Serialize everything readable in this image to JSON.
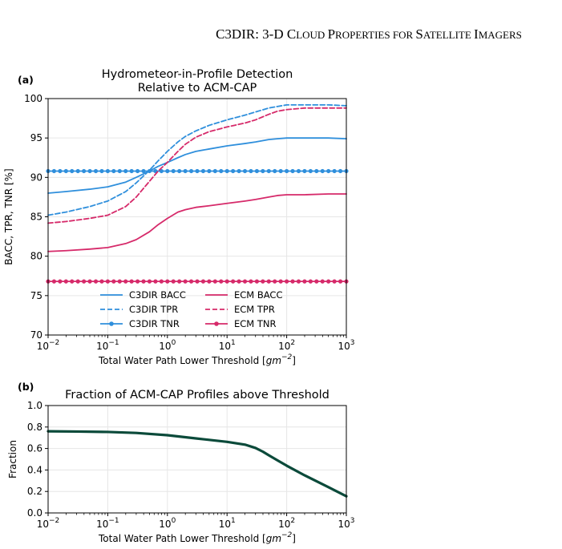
{
  "header": {
    "prefix": "C3DIR: 3-D ",
    "words": [
      {
        "cap": "C",
        "rest": "LOUD"
      },
      {
        "cap": "P",
        "rest": "ROPERTIES FOR"
      },
      {
        "cap": "S",
        "rest": "ATELLITE"
      },
      {
        "cap": "I",
        "rest": "MAGERS"
      }
    ]
  },
  "colors": {
    "c3dir": "#2f8fdc",
    "ecm": "#d62a6a",
    "fraction": "#0b4a3a",
    "grid": "#e6e6e6"
  },
  "chart_data": [
    {
      "type": "line",
      "panel_label": "(a)",
      "title": [
        "Hydrometeor-in-Profile Detection",
        "Relative to ACM-CAP"
      ],
      "xlabel": "Total Water Path Lower Threshold [gm⁻²]",
      "ylabel": "BACC, TPR, TNR [%]",
      "xscale": "log",
      "xlim": [
        0.01,
        1000
      ],
      "ylim": [
        70,
        100
      ],
      "xticks": [
        {
          "value": 0.01,
          "base": "10",
          "exp": "−2"
        },
        {
          "value": 0.1,
          "base": "10",
          "exp": "−1"
        },
        {
          "value": 1,
          "base": "10",
          "exp": "0"
        },
        {
          "value": 10,
          "base": "10",
          "exp": "1"
        },
        {
          "value": 100,
          "base": "10",
          "exp": "2"
        },
        {
          "value": 1000,
          "base": "10",
          "exp": "3"
        }
      ],
      "yticks": [
        70,
        75,
        80,
        85,
        90,
        95,
        100
      ],
      "grid": true,
      "legend": "lower-center, 2 columns",
      "x": [
        0.01,
        0.02,
        0.05,
        0.1,
        0.2,
        0.3,
        0.5,
        0.7,
        1,
        1.5,
        2,
        3,
        5,
        10,
        20,
        30,
        50,
        70,
        100,
        200,
        500,
        1000
      ],
      "series": [
        {
          "name": "C3DIR BACC",
          "color": "#2f8fdc",
          "style": "solid",
          "marker": false,
          "values": [
            88.0,
            88.2,
            88.5,
            88.8,
            89.4,
            90.0,
            90.8,
            91.4,
            91.9,
            92.5,
            92.9,
            93.3,
            93.6,
            94.0,
            94.3,
            94.5,
            94.8,
            94.9,
            95.0,
            95.0,
            95.0,
            94.9
          ]
        },
        {
          "name": "C3DIR TPR",
          "color": "#2f8fdc",
          "style": "dashed",
          "marker": false,
          "values": [
            85.2,
            85.6,
            86.3,
            87.0,
            88.2,
            89.3,
            90.9,
            92.1,
            93.3,
            94.5,
            95.2,
            95.9,
            96.6,
            97.3,
            97.9,
            98.3,
            98.8,
            99.0,
            99.2,
            99.2,
            99.2,
            99.1
          ]
        },
        {
          "name": "C3DIR TNR",
          "color": "#2f8fdc",
          "style": "solid",
          "marker": true,
          "values": [
            90.8,
            90.8,
            90.8,
            90.8,
            90.8,
            90.8,
            90.8,
            90.8,
            90.8,
            90.8,
            90.8,
            90.8,
            90.8,
            90.8,
            90.8,
            90.8,
            90.8,
            90.8,
            90.8,
            90.8,
            90.8,
            90.8
          ]
        },
        {
          "name": "ECM BACC",
          "color": "#d62a6a",
          "style": "solid",
          "marker": false,
          "values": [
            80.6,
            80.7,
            80.9,
            81.1,
            81.6,
            82.1,
            83.1,
            84.0,
            84.8,
            85.6,
            85.9,
            86.2,
            86.4,
            86.7,
            87.0,
            87.2,
            87.5,
            87.7,
            87.8,
            87.8,
            87.9,
            87.9
          ]
        },
        {
          "name": "ECM TPR",
          "color": "#d62a6a",
          "style": "dashed",
          "marker": false,
          "values": [
            84.2,
            84.4,
            84.8,
            85.2,
            86.3,
            87.5,
            89.5,
            90.8,
            91.9,
            93.3,
            94.2,
            95.1,
            95.8,
            96.4,
            96.9,
            97.3,
            98.0,
            98.4,
            98.6,
            98.8,
            98.8,
            98.8
          ]
        },
        {
          "name": "ECM TNR",
          "color": "#d62a6a",
          "style": "solid",
          "marker": true,
          "values": [
            76.8,
            76.8,
            76.8,
            76.8,
            76.8,
            76.8,
            76.8,
            76.8,
            76.8,
            76.8,
            76.8,
            76.8,
            76.8,
            76.8,
            76.8,
            76.8,
            76.8,
            76.8,
            76.8,
            76.8,
            76.8,
            76.8
          ]
        }
      ]
    },
    {
      "type": "line",
      "panel_label": "(b)",
      "title": [
        "Fraction of ACM-CAP Profiles above Threshold"
      ],
      "xlabel": "Total Water Path Lower Threshold [gm⁻²]",
      "ylabel": "Fraction",
      "xscale": "log",
      "xlim": [
        0.01,
        1000
      ],
      "ylim": [
        0.0,
        1.0
      ],
      "xticks": [
        {
          "value": 0.01,
          "base": "10",
          "exp": "−2"
        },
        {
          "value": 0.1,
          "base": "10",
          "exp": "−1"
        },
        {
          "value": 1,
          "base": "10",
          "exp": "0"
        },
        {
          "value": 10,
          "base": "10",
          "exp": "1"
        },
        {
          "value": 100,
          "base": "10",
          "exp": "2"
        },
        {
          "value": 1000,
          "base": "10",
          "exp": "3"
        }
      ],
      "yticks": [
        "0.0",
        "0.2",
        "0.4",
        "0.6",
        "0.8",
        "1.0"
      ],
      "grid": true,
      "x": [
        0.01,
        0.03,
        0.1,
        0.3,
        1,
        3,
        10,
        20,
        30,
        40,
        50,
        70,
        100,
        200,
        500,
        1000
      ],
      "series": [
        {
          "color": "#0b4a3a",
          "style": "solid",
          "marker": false,
          "values": [
            0.76,
            0.758,
            0.754,
            0.745,
            0.724,
            0.694,
            0.662,
            0.636,
            0.605,
            0.57,
            0.537,
            0.49,
            0.44,
            0.35,
            0.24,
            0.155
          ]
        }
      ]
    }
  ]
}
